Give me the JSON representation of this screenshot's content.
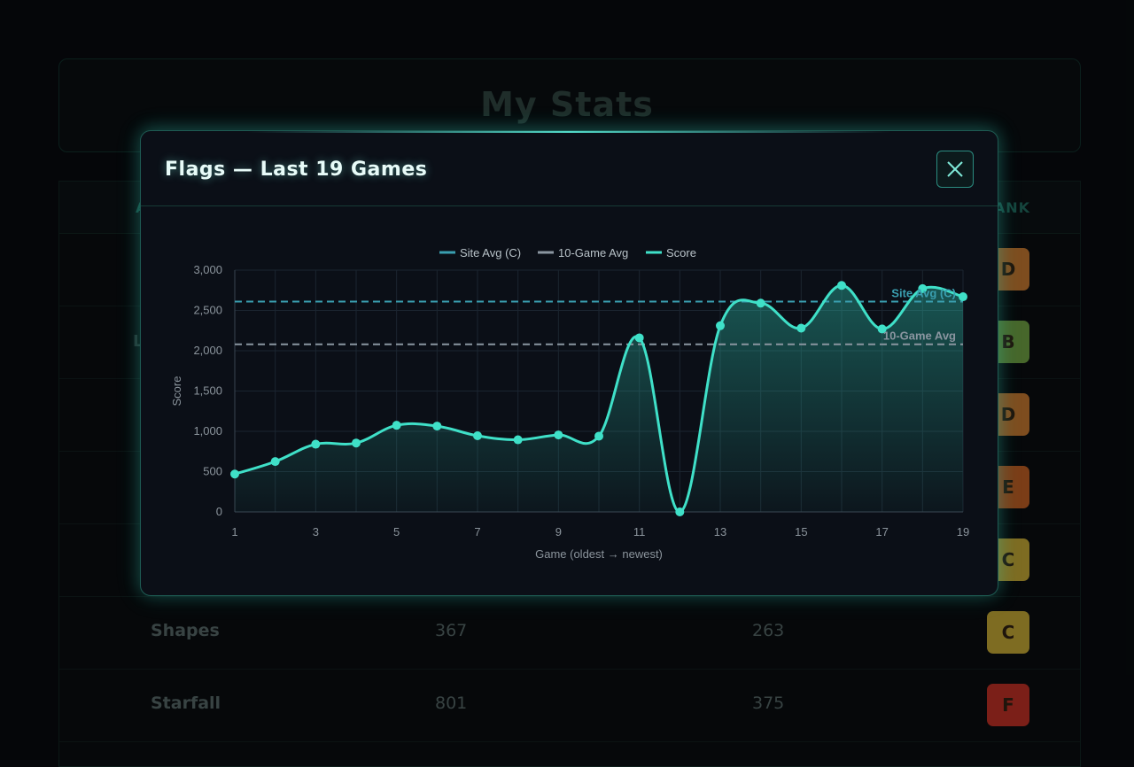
{
  "background": {
    "title": "My Stats",
    "header_rank": "ANK",
    "header_first": "A",
    "left_fragment": "L",
    "rows": [
      {
        "name": "",
        "v1": "",
        "v2": "",
        "rank": "D",
        "color": "#a8672a"
      },
      {
        "name": "",
        "v1": "",
        "v2": "",
        "rank": "B",
        "color": "#5f8a3a"
      },
      {
        "name": "",
        "v1": "",
        "v2": "",
        "rank": "D",
        "color": "#a8672a"
      },
      {
        "name": "",
        "v1": "",
        "v2": "",
        "rank": "E",
        "color": "#a4521f"
      },
      {
        "name": "",
        "v1": "",
        "v2": "",
        "rank": "C",
        "color": "#a8902e"
      },
      {
        "name": "Shapes",
        "v1": "367",
        "v2": "263",
        "rank": "C",
        "color": "#a8902e"
      },
      {
        "name": "Starfall",
        "v1": "801",
        "v2": "375",
        "rank": "F",
        "color": "#a52a20"
      }
    ]
  },
  "modal": {
    "title": "Flags — Last 19 Games",
    "close_icon": "close-icon"
  },
  "colors": {
    "accent": "#3fe0c8",
    "site_avg": "#3a9fb0",
    "ten_game_avg": "#8a95a0"
  },
  "chart_data": {
    "type": "line",
    "title": "",
    "xlabel": "Game (oldest → newest)",
    "ylabel": "Score",
    "ylim": [
      0,
      3000
    ],
    "yticks": [
      0,
      500,
      1000,
      1500,
      2000,
      2500,
      3000
    ],
    "ytick_labels": [
      "0",
      "500",
      "1,000",
      "1,500",
      "2,000",
      "2,500",
      "3,000"
    ],
    "xticks": [
      1,
      3,
      5,
      7,
      9,
      11,
      13,
      15,
      17,
      19
    ],
    "x": [
      1,
      2,
      3,
      4,
      5,
      6,
      7,
      8,
      9,
      10,
      11,
      12,
      13,
      14,
      15,
      16,
      17,
      18,
      19
    ],
    "series": [
      {
        "name": "Score",
        "values": [
          470,
          625,
          840,
          855,
          1075,
          1065,
          945,
          895,
          955,
          940,
          2160,
          0,
          2310,
          2590,
          2280,
          2810,
          2270,
          2770,
          2670
        ]
      }
    ],
    "reference_lines": [
      {
        "name": "Site Avg (C)",
        "label": "Site Avg (C)",
        "value": 2610
      },
      {
        "name": "10-Game Avg",
        "label": "10-Game Avg",
        "value": 2080
      }
    ],
    "legend": [
      "Site Avg (C)",
      "10-Game Avg",
      "Score"
    ],
    "legend_position": "top-center",
    "grid": true
  }
}
